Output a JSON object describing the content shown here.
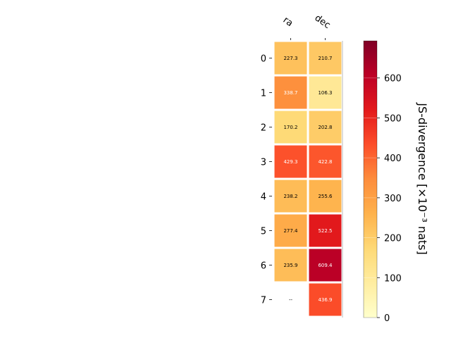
{
  "chart_data": {
    "type": "heatmap",
    "columns": [
      "ra",
      "dec"
    ],
    "rows": [
      "0",
      "1",
      "2",
      "3",
      "4",
      "5",
      "6",
      "7"
    ],
    "values": [
      [
        227.3,
        210.7
      ],
      [
        338.7,
        106.3
      ],
      [
        170.2,
        202.8
      ],
      [
        429.3,
        422.8
      ],
      [
        238.2,
        255.6
      ],
      [
        277.4,
        522.5
      ],
      [
        235.9,
        609.4
      ],
      [
        null,
        436.9
      ]
    ],
    "labels": [
      [
        "227.3",
        "210.7"
      ],
      [
        "338.7",
        "106.3"
      ],
      [
        "170.2",
        "202.8"
      ],
      [
        "429.3",
        "422.8"
      ],
      [
        "238.2",
        "255.6"
      ],
      [
        "277.4",
        "522.5"
      ],
      [
        "235.9",
        "609.4"
      ],
      [
        "--",
        "436.9"
      ]
    ],
    "colorbar": {
      "label": "JS-divergence [×10⁻³ nats]",
      "range": [
        0,
        693
      ],
      "ticks": [
        0,
        100,
        200,
        300,
        400,
        500,
        600
      ],
      "tick_labels": [
        "0",
        "100",
        "200",
        "300",
        "400",
        "500",
        "600"
      ],
      "colormap": "YlOrRd"
    },
    "grid": false
  }
}
